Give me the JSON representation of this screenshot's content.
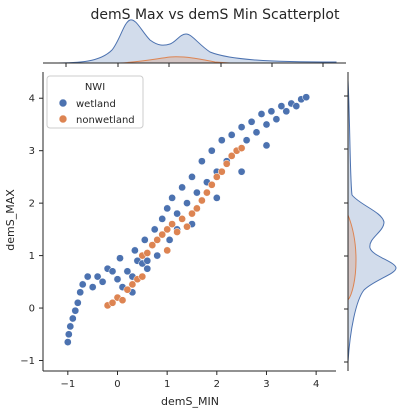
{
  "chart_data": {
    "type": "scatter",
    "title": "demS Max vs demS Min Scatterplot",
    "xlabel": "demS_MIN",
    "ylabel": "demS_MAX",
    "xlim": [
      -1.5,
      4.4
    ],
    "ylim": [
      -1.2,
      4.5
    ],
    "xticks": [
      -1,
      0,
      1,
      2,
      3,
      4
    ],
    "yticks": [
      -1,
      0,
      1,
      2,
      3,
      4
    ],
    "grid": false,
    "legend": {
      "title": "NWI",
      "placement": "top-left"
    },
    "series": [
      {
        "name": "wetland",
        "color": "#4c72b0",
        "points": [
          [
            -1.0,
            -0.65
          ],
          [
            -0.98,
            -0.5
          ],
          [
            -0.95,
            -0.35
          ],
          [
            -0.9,
            -0.2
          ],
          [
            -0.85,
            -0.05
          ],
          [
            -0.8,
            0.1
          ],
          [
            -0.75,
            0.3
          ],
          [
            -0.7,
            0.45
          ],
          [
            -0.6,
            0.6
          ],
          [
            -0.5,
            0.4
          ],
          [
            -0.4,
            0.6
          ],
          [
            -0.3,
            0.5
          ],
          [
            -0.2,
            0.75
          ],
          [
            -0.1,
            0.7
          ],
          [
            0.0,
            0.55
          ],
          [
            0.05,
            0.95
          ],
          [
            0.1,
            0.4
          ],
          [
            0.2,
            0.7
          ],
          [
            0.3,
            0.6
          ],
          [
            0.35,
            1.1
          ],
          [
            0.4,
            0.9
          ],
          [
            0.5,
            0.85
          ],
          [
            0.55,
            1.3
          ],
          [
            0.6,
            0.75
          ],
          [
            0.7,
            1.2
          ],
          [
            0.75,
            1.5
          ],
          [
            0.8,
            1.0
          ],
          [
            0.9,
            1.7
          ],
          [
            1.0,
            1.9
          ],
          [
            1.05,
            1.3
          ],
          [
            1.1,
            2.1
          ],
          [
            1.2,
            1.5
          ],
          [
            1.3,
            2.3
          ],
          [
            1.4,
            2.0
          ],
          [
            1.5,
            2.5
          ],
          [
            1.6,
            2.2
          ],
          [
            1.7,
            2.8
          ],
          [
            1.8,
            2.4
          ],
          [
            1.9,
            3.0
          ],
          [
            2.0,
            2.6
          ],
          [
            2.1,
            3.2
          ],
          [
            2.2,
            2.8
          ],
          [
            2.3,
            3.3
          ],
          [
            2.4,
            3.0
          ],
          [
            2.5,
            3.45
          ],
          [
            2.6,
            3.2
          ],
          [
            2.7,
            3.55
          ],
          [
            2.8,
            3.35
          ],
          [
            2.9,
            3.7
          ],
          [
            3.0,
            3.5
          ],
          [
            3.1,
            3.75
          ],
          [
            3.2,
            3.6
          ],
          [
            3.3,
            3.85
          ],
          [
            3.4,
            3.75
          ],
          [
            3.5,
            3.9
          ],
          [
            3.6,
            3.85
          ],
          [
            3.7,
            3.98
          ],
          [
            3.8,
            4.02
          ],
          [
            1.5,
            1.6
          ],
          [
            2.0,
            2.1
          ],
          [
            2.5,
            2.6
          ],
          [
            3.0,
            3.1
          ],
          [
            0.3,
            0.3
          ],
          [
            0.6,
            0.9
          ],
          [
            1.2,
            1.8
          ]
        ]
      },
      {
        "name": "nonwetland",
        "color": "#dd8452",
        "points": [
          [
            -0.2,
            0.05
          ],
          [
            -0.1,
            0.1
          ],
          [
            0.0,
            0.2
          ],
          [
            0.1,
            0.15
          ],
          [
            0.2,
            0.35
          ],
          [
            0.3,
            0.45
          ],
          [
            0.4,
            0.55
          ],
          [
            0.5,
            0.6
          ],
          [
            0.5,
            1.0
          ],
          [
            0.6,
            1.05
          ],
          [
            0.7,
            1.2
          ],
          [
            0.8,
            1.3
          ],
          [
            0.9,
            1.4
          ],
          [
            1.0,
            1.5
          ],
          [
            1.0,
            1.1
          ],
          [
            1.1,
            1.6
          ],
          [
            1.2,
            1.45
          ],
          [
            1.3,
            1.7
          ],
          [
            1.4,
            1.55
          ],
          [
            1.5,
            1.8
          ],
          [
            1.6,
            1.9
          ],
          [
            1.7,
            2.05
          ],
          [
            1.8,
            2.2
          ],
          [
            1.9,
            2.35
          ],
          [
            2.0,
            2.5
          ],
          [
            2.1,
            2.6
          ],
          [
            2.2,
            2.75
          ],
          [
            2.3,
            2.9
          ],
          [
            2.4,
            3.0
          ],
          [
            2.5,
            3.05
          ]
        ]
      }
    ]
  }
}
